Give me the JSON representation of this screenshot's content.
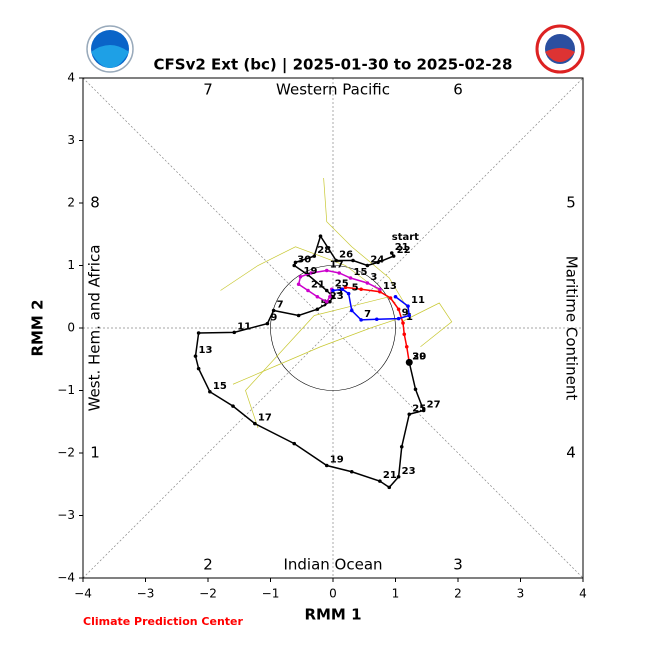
{
  "chart_data": {
    "type": "line",
    "title": "CFSv2 Ext (bc) | 2025-01-30 to 2025-02-28",
    "x_label": "RMM 1",
    "y_label": "RMM 2",
    "footer": "Climate Prediction Center",
    "start_label": "start",
    "phase_labels": [
      "1",
      "2",
      "3",
      "4",
      "5",
      "6",
      "7",
      "8"
    ],
    "region_labels": [
      "Western Pacific",
      "Indian Ocean",
      "West. Hem. and Africa",
      "Maritime Continent"
    ],
    "xlim": [
      -4,
      4
    ],
    "ylim": [
      -4,
      4
    ],
    "xticks": [
      {
        "value": -4,
        "label": "−4"
      },
      {
        "value": -3,
        "label": "−3"
      },
      {
        "value": -2,
        "label": "−2"
      },
      {
        "value": -1,
        "label": "−1"
      },
      0,
      1,
      2,
      3,
      4
    ],
    "yticks": [
      {
        "value": -4,
        "label": "−4"
      },
      {
        "value": -3,
        "label": "−3"
      },
      {
        "value": -2,
        "label": "−2"
      },
      {
        "value": -1,
        "label": "−1"
      },
      0,
      1,
      2,
      3,
      4
    ],
    "series": [
      {
        "color": "#c8c832",
        "width": 0.7,
        "x": [
          1.2,
          0.9,
          0.3,
          -0.1,
          -0.15
        ],
        "y": [
          0.3,
          0.8,
          1.3,
          1.7,
          2.4
        ]
      },
      {
        "color": "#c8c832",
        "width": 0.7,
        "x": [
          1.2,
          0.6,
          -0.2,
          -0.9,
          -1.6
        ],
        "y": [
          0.2,
          0.0,
          -0.3,
          -0.6,
          -0.9
        ]
      },
      {
        "color": "#c8c832",
        "width": 0.7,
        "x": [
          1.1,
          1.7,
          1.9,
          1.4
        ],
        "y": [
          0.1,
          0.4,
          0.1,
          -0.3
        ]
      },
      {
        "color": "#c8c832",
        "width": 0.7,
        "x": [
          1.0,
          0.2,
          -0.6,
          -1.2,
          -1.8
        ],
        "y": [
          0.4,
          1.0,
          1.3,
          1.0,
          0.6
        ]
      },
      {
        "color": "#c8c832",
        "width": 0.7,
        "x": [
          0.9,
          -0.3,
          -1.4,
          -1.2
        ],
        "y": [
          0.5,
          0.2,
          -1.0,
          -1.6
        ]
      },
      {
        "color": "#000000",
        "width": 1.5,
        "x": [
          0.94,
          0.97,
          0.72,
          0.55,
          0.32,
          0.05,
          -0.2,
          -0.3,
          -0.6,
          -0.62,
          -0.4,
          -0.1,
          0.0,
          -0.05,
          -0.25,
          -0.55,
          -0.95,
          -1.05,
          -1.58,
          -2.15,
          -2.2,
          -2.15,
          -1.97,
          -1.6,
          -1.25,
          -0.62,
          -0.1,
          0.3,
          0.75,
          0.9,
          1.05,
          1.1,
          1.22,
          1.45,
          1.32,
          1.22
        ],
        "y": [
          1.2,
          1.15,
          1.05,
          1.0,
          1.08,
          1.08,
          1.47,
          1.15,
          1.05,
          1.0,
          0.85,
          0.6,
          0.5,
          0.42,
          0.3,
          0.2,
          0.28,
          0.07,
          -0.07,
          -0.08,
          -0.45,
          -0.65,
          -1.02,
          -1.25,
          -1.53,
          -1.85,
          -2.2,
          -2.3,
          -2.45,
          -2.55,
          -2.38,
          -1.9,
          -1.38,
          -1.32,
          -0.98,
          -0.55
        ],
        "point_labels": [
          "21",
          "22",
          null,
          "24",
          null,
          "26",
          null,
          "28",
          null,
          "30",
          null,
          null,
          "3",
          null,
          "5",
          null,
          "7",
          "9",
          "11",
          null,
          "13",
          null,
          "15",
          null,
          "17",
          null,
          "19",
          null,
          "21",
          null,
          "23",
          null,
          "25",
          "27",
          null,
          "29"
        ]
      },
      {
        "color": "#ff0000",
        "width": 1.5,
        "x": [
          1.22,
          1.18,
          1.14,
          1.12,
          1.05,
          0.92,
          0.75,
          0.45,
          0.2
        ],
        "y": [
          -0.55,
          -0.3,
          -0.1,
          0.08,
          0.3,
          0.48,
          0.58,
          0.62,
          0.65
        ],
        "point_labels": [
          "30",
          null,
          null,
          "1",
          null,
          null,
          "13",
          null,
          null
        ]
      },
      {
        "color": "#cc00cc",
        "width": 1.5,
        "x": [
          0.75,
          0.55,
          0.28,
          0.1,
          -0.1,
          -0.35,
          -0.52,
          -0.55,
          -0.4,
          -0.25,
          -0.1,
          -0.05,
          -0.02
        ],
        "y": [
          0.62,
          0.72,
          0.8,
          0.88,
          0.92,
          0.88,
          0.82,
          0.7,
          0.6,
          0.5,
          0.42,
          0.5,
          0.62
        ],
        "point_labels": [
          null,
          "3",
          "15",
          null,
          "17",
          null,
          "19",
          null,
          "21",
          null,
          "23",
          null,
          "25"
        ]
      },
      {
        "color": "#0000ff",
        "width": 1.5,
        "x": [
          1.0,
          1.2,
          1.22,
          1.05,
          0.7,
          0.45,
          0.3,
          0.25,
          0.15,
          0.0
        ],
        "y": [
          0.5,
          0.35,
          0.2,
          0.15,
          0.14,
          0.13,
          0.28,
          0.55,
          0.62,
          0.6
        ],
        "point_labels": [
          null,
          "11",
          null,
          "9",
          null,
          "7",
          null,
          "5",
          null,
          null
        ]
      }
    ]
  }
}
